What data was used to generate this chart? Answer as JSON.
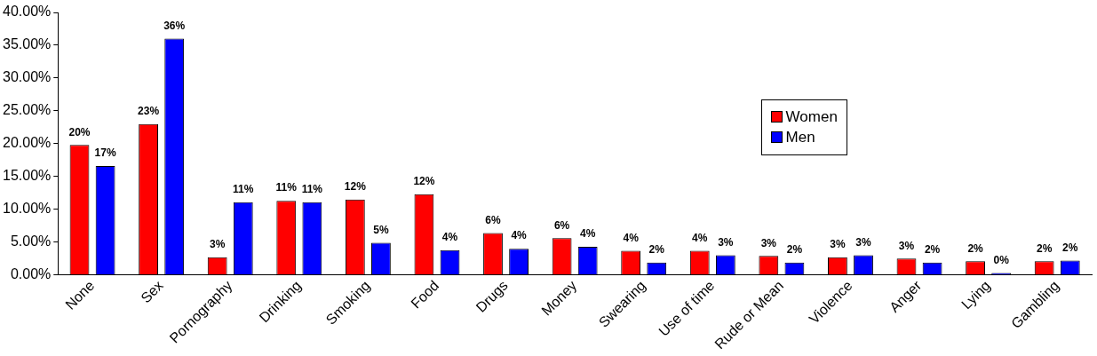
{
  "chart_data": {
    "type": "bar",
    "categories": [
      "None",
      "Sex",
      "Pornography",
      "Drinking",
      "Smoking",
      "Food",
      "Drugs",
      "Money",
      "Swearing",
      "Use of time",
      "Rude or Mean",
      "Violence",
      "Anger",
      "Lying",
      "Gambling"
    ],
    "series": [
      {
        "name": "Women",
        "color": "#ff0000",
        "values": [
          19.8,
          23.0,
          2.7,
          11.3,
          11.5,
          12.3,
          6.4,
          5.6,
          3.7,
          3.7,
          2.9,
          2.7,
          2.5,
          2.1,
          2.1
        ],
        "value_labels": [
          "20%",
          "23%",
          "3%",
          "11%",
          "12%",
          "12%",
          "6%",
          "6%",
          "4%",
          "4%",
          "3%",
          "3%",
          "3%",
          "2%",
          "2%"
        ]
      },
      {
        "name": "Men",
        "color": "#0000ff",
        "values": [
          16.6,
          36.0,
          11.1,
          11.1,
          4.9,
          3.8,
          4.0,
          4.3,
          1.9,
          3.0,
          1.9,
          3.0,
          1.9,
          0.3,
          2.2
        ],
        "value_labels": [
          "17%",
          "36%",
          "11%",
          "11%",
          "5%",
          "4%",
          "4%",
          "4%",
          "2%",
          "3%",
          "2%",
          "3%",
          "2%",
          "0%",
          "2%"
        ]
      }
    ],
    "ylim": [
      0,
      40
    ],
    "yticks": [
      {
        "value": 0,
        "label": "0.00%"
      },
      {
        "value": 5,
        "label": "5.00%"
      },
      {
        "value": 10,
        "label": "10.00%"
      },
      {
        "value": 15,
        "label": "15.00%"
      },
      {
        "value": 20,
        "label": "20.00%"
      },
      {
        "value": 25,
        "label": "25.00%"
      },
      {
        "value": 30,
        "label": "30.00%"
      },
      {
        "value": 35,
        "label": "35.00%"
      },
      {
        "value": 40,
        "label": "40.00%"
      }
    ],
    "grid": false,
    "legend": "top right"
  }
}
